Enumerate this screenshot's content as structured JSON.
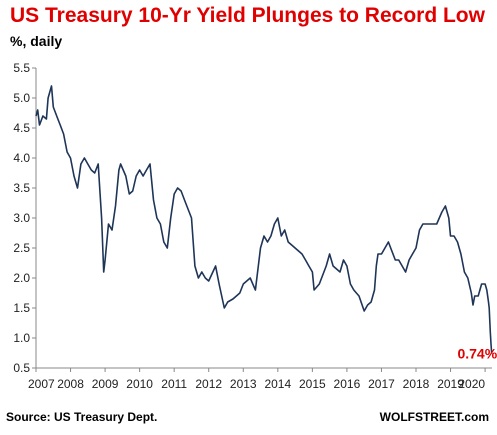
{
  "header": {
    "title": "US Treasury 10-Yr Yield Plunges to Record Low",
    "subtitle": "%, daily"
  },
  "footer": {
    "source": "Source: US Treasury Dept.",
    "brand": "WOLFSTREET.com"
  },
  "colors": {
    "title": "#e00000",
    "line": "#1f3558",
    "annotation": "#e00000",
    "axis": "#888888"
  },
  "chart_data": {
    "type": "line",
    "title": "US Treasury 10-Yr Yield Plunges to Record Low",
    "ylabel": "%, daily",
    "xlabel": "",
    "ylim": [
      0.5,
      5.5
    ],
    "xlim": [
      2007.0,
      2020.2
    ],
    "yticks": [
      "0.5",
      "1.0",
      "1.5",
      "2.0",
      "2.5",
      "3.0",
      "3.5",
      "4.0",
      "4.5",
      "5.0",
      "5.5"
    ],
    "xticks": [
      "2007",
      "2008",
      "2009",
      "2010",
      "2011",
      "2012",
      "2013",
      "2014",
      "2015",
      "2016",
      "2017",
      "2018",
      "2019",
      "2020"
    ],
    "grid": false,
    "series": [
      {
        "name": "",
        "x": [
          2007.0,
          2007.05,
          2007.1,
          2007.2,
          2007.3,
          2007.35,
          2007.4,
          2007.45,
          2007.5,
          2007.6,
          2007.7,
          2007.8,
          2007.9,
          2008.0,
          2008.1,
          2008.2,
          2008.3,
          2008.4,
          2008.5,
          2008.6,
          2008.7,
          2008.8,
          2008.9,
          2008.96,
          2009.0,
          2009.1,
          2009.2,
          2009.3,
          2009.4,
          2009.45,
          2009.6,
          2009.7,
          2009.8,
          2009.9,
          2010.0,
          2010.1,
          2010.2,
          2010.3,
          2010.4,
          2010.5,
          2010.6,
          2010.7,
          2010.8,
          2010.9,
          2011.0,
          2011.1,
          2011.2,
          2011.3,
          2011.5,
          2011.6,
          2011.7,
          2011.8,
          2011.9,
          2012.0,
          2012.2,
          2012.3,
          2012.45,
          2012.55,
          2012.7,
          2012.8,
          2012.9,
          2013.0,
          2013.2,
          2013.35,
          2013.5,
          2013.6,
          2013.7,
          2013.8,
          2013.9,
          2014.0,
          2014.1,
          2014.2,
          2014.3,
          2014.5,
          2014.7,
          2014.8,
          2014.9,
          2015.0,
          2015.05,
          2015.2,
          2015.4,
          2015.5,
          2015.6,
          2015.8,
          2015.9,
          2016.0,
          2016.1,
          2016.2,
          2016.35,
          2016.5,
          2016.6,
          2016.7,
          2016.8,
          2016.85,
          2016.9,
          2017.0,
          2017.2,
          2017.4,
          2017.5,
          2017.7,
          2017.8,
          2017.9,
          2018.0,
          2018.1,
          2018.2,
          2018.4,
          2018.6,
          2018.75,
          2018.85,
          2018.95,
          2019.0,
          2019.1,
          2019.2,
          2019.3,
          2019.4,
          2019.5,
          2019.6,
          2019.65,
          2019.7,
          2019.8,
          2019.9,
          2020.0,
          2020.05,
          2020.1,
          2020.12,
          2020.15,
          2020.17,
          2020.19
        ],
        "values": [
          4.7,
          4.8,
          4.55,
          4.7,
          4.65,
          5.0,
          5.1,
          5.2,
          4.85,
          4.7,
          4.55,
          4.4,
          4.1,
          4.0,
          3.7,
          3.5,
          3.9,
          4.0,
          3.9,
          3.8,
          3.75,
          3.9,
          3.0,
          2.1,
          2.3,
          2.9,
          2.8,
          3.2,
          3.8,
          3.9,
          3.7,
          3.4,
          3.45,
          3.7,
          3.8,
          3.7,
          3.8,
          3.9,
          3.3,
          3.0,
          2.9,
          2.6,
          2.5,
          3.0,
          3.4,
          3.5,
          3.45,
          3.3,
          3.0,
          2.2,
          2.0,
          2.1,
          2.0,
          1.95,
          2.2,
          1.9,
          1.5,
          1.6,
          1.65,
          1.7,
          1.75,
          1.9,
          2.0,
          1.8,
          2.5,
          2.7,
          2.6,
          2.7,
          2.9,
          3.0,
          2.7,
          2.8,
          2.6,
          2.5,
          2.4,
          2.3,
          2.2,
          2.1,
          1.8,
          1.9,
          2.2,
          2.4,
          2.2,
          2.1,
          2.3,
          2.2,
          1.9,
          1.8,
          1.7,
          1.45,
          1.55,
          1.6,
          1.8,
          2.2,
          2.4,
          2.4,
          2.6,
          2.3,
          2.3,
          2.1,
          2.3,
          2.4,
          2.5,
          2.8,
          2.9,
          2.9,
          2.9,
          3.1,
          3.2,
          3.0,
          2.7,
          2.7,
          2.6,
          2.4,
          2.1,
          2.0,
          1.75,
          1.55,
          1.7,
          1.7,
          1.9,
          1.9,
          1.8,
          1.6,
          1.5,
          1.1,
          0.9,
          0.74
        ]
      }
    ],
    "annotations": [
      {
        "text": "0.74%",
        "x": 2019.2,
        "y": 0.74
      }
    ]
  }
}
